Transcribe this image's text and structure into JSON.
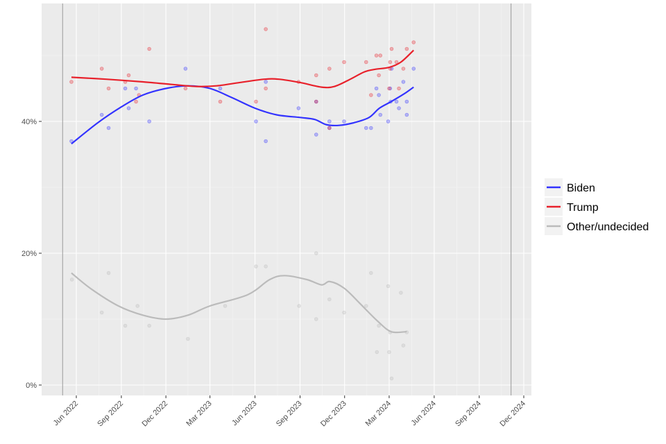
{
  "chart_data": {
    "type": "scatter",
    "title": "",
    "xlabel": "",
    "ylabel": "",
    "xlim": [
      "2022-03-22",
      "2024-12-17"
    ],
    "ylim": [
      -1.6,
      58
    ],
    "grid": true,
    "legend_position": "right",
    "x_ticks": [
      {
        "date": "2022-06-01",
        "label": "Jun 2022"
      },
      {
        "date": "2022-09-01",
        "label": "Sep 2022"
      },
      {
        "date": "2022-12-01",
        "label": "Dec 2022"
      },
      {
        "date": "2023-03-01",
        "label": "Mar 2023"
      },
      {
        "date": "2023-06-01",
        "label": "Jun 2023"
      },
      {
        "date": "2023-09-01",
        "label": "Sep 2023"
      },
      {
        "date": "2023-12-01",
        "label": "Dec 2023"
      },
      {
        "date": "2024-03-01",
        "label": "Mar 2024"
      },
      {
        "date": "2024-06-01",
        "label": "Jun 2024"
      },
      {
        "date": "2024-09-01",
        "label": "Sep 2024"
      },
      {
        "date": "2024-12-01",
        "label": "Dec 2024"
      }
    ],
    "y_ticks": [
      {
        "value": 0,
        "label": "0%"
      },
      {
        "value": 20,
        "label": "20%"
      },
      {
        "value": 40,
        "label": "40%"
      }
    ],
    "reference_lines": [
      "2022-05-04",
      "2024-11-05"
    ],
    "series": [
      {
        "name": "Biden",
        "color": "#3333ff",
        "points": [
          [
            "2022-05-22",
            37
          ],
          [
            "2022-07-23",
            41
          ],
          [
            "2022-08-06",
            39
          ],
          [
            "2022-09-09",
            45
          ],
          [
            "2022-09-16",
            42
          ],
          [
            "2022-10-01",
            45
          ],
          [
            "2022-10-28",
            40
          ],
          [
            "2023-01-10",
            48
          ],
          [
            "2023-03-22",
            45
          ],
          [
            "2023-06-03",
            40
          ],
          [
            "2023-06-23",
            46
          ],
          [
            "2023-06-23",
            37
          ],
          [
            "2023-08-29",
            42
          ],
          [
            "2023-10-04",
            38
          ],
          [
            "2023-10-04",
            43
          ],
          [
            "2023-10-31",
            40
          ],
          [
            "2023-10-31",
            39
          ],
          [
            "2023-11-30",
            40
          ],
          [
            "2024-01-14",
            39
          ],
          [
            "2024-01-24",
            39
          ],
          [
            "2024-02-04",
            45
          ],
          [
            "2024-02-09",
            44
          ],
          [
            "2024-02-12",
            41
          ],
          [
            "2024-02-28",
            40
          ],
          [
            "2024-03-03",
            45
          ],
          [
            "2024-03-04",
            43
          ],
          [
            "2024-03-06",
            48
          ],
          [
            "2024-03-16",
            43
          ],
          [
            "2024-03-21",
            42
          ],
          [
            "2024-03-30",
            46
          ],
          [
            "2024-04-06",
            43
          ],
          [
            "2024-04-06",
            41
          ],
          [
            "2024-04-20",
            48
          ]
        ],
        "trend": [
          [
            "2022-05-22",
            36.6
          ],
          [
            "2022-07-15",
            39.8
          ],
          [
            "2022-09-01",
            42.2
          ],
          [
            "2022-10-15",
            44
          ],
          [
            "2022-12-01",
            45
          ],
          [
            "2023-01-15",
            45.4
          ],
          [
            "2023-03-01",
            45
          ],
          [
            "2023-04-15",
            43.6
          ],
          [
            "2023-06-01",
            42
          ],
          [
            "2023-07-15",
            41
          ],
          [
            "2023-09-01",
            40.6
          ],
          [
            "2023-10-01",
            40.3
          ],
          [
            "2023-10-25",
            39.5
          ],
          [
            "2023-11-20",
            39.4
          ],
          [
            "2023-12-20",
            39.8
          ],
          [
            "2024-01-20",
            40.6
          ],
          [
            "2024-02-10",
            42
          ],
          [
            "2024-03-05",
            43
          ],
          [
            "2024-04-01",
            44.2
          ],
          [
            "2024-04-20",
            45.2
          ]
        ]
      },
      {
        "name": "Trump",
        "color": "#e8212b",
        "points": [
          [
            "2022-05-22",
            46
          ],
          [
            "2022-07-23",
            48
          ],
          [
            "2022-08-06",
            45
          ],
          [
            "2022-09-09",
            46
          ],
          [
            "2022-09-16",
            47
          ],
          [
            "2022-10-01",
            43
          ],
          [
            "2022-10-07",
            44
          ],
          [
            "2022-10-28",
            51
          ],
          [
            "2023-01-10",
            45
          ],
          [
            "2023-03-22",
            43
          ],
          [
            "2023-06-03",
            43
          ],
          [
            "2023-06-23",
            54
          ],
          [
            "2023-06-23",
            45
          ],
          [
            "2023-08-29",
            46
          ],
          [
            "2023-10-04",
            47
          ],
          [
            "2023-10-04",
            43
          ],
          [
            "2023-10-31",
            48
          ],
          [
            "2023-10-31",
            39
          ],
          [
            "2023-11-30",
            49
          ],
          [
            "2024-01-14",
            49
          ],
          [
            "2024-01-24",
            44
          ],
          [
            "2024-02-04",
            50
          ],
          [
            "2024-02-12",
            50
          ],
          [
            "2024-02-09",
            47
          ],
          [
            "2024-03-01",
            45
          ],
          [
            "2024-03-03",
            48
          ],
          [
            "2024-03-06",
            51
          ],
          [
            "2024-03-03",
            49
          ],
          [
            "2024-03-16",
            49
          ],
          [
            "2024-03-21",
            45
          ],
          [
            "2024-03-30",
            48
          ],
          [
            "2024-04-06",
            51
          ],
          [
            "2024-04-20",
            52
          ]
        ],
        "trend": [
          [
            "2022-05-22",
            46.7
          ],
          [
            "2022-08-01",
            46.4
          ],
          [
            "2022-10-15",
            46
          ],
          [
            "2022-12-15",
            45.6
          ],
          [
            "2023-02-01",
            45.3
          ],
          [
            "2023-03-15",
            45.4
          ],
          [
            "2023-05-01",
            45.9
          ],
          [
            "2023-06-20",
            46.4
          ],
          [
            "2023-07-20",
            46.4
          ],
          [
            "2023-09-01",
            45.9
          ],
          [
            "2023-10-15",
            45.2
          ],
          [
            "2023-11-10",
            45.3
          ],
          [
            "2023-12-10",
            46.3
          ],
          [
            "2024-01-10",
            47.5
          ],
          [
            "2024-02-01",
            47.9
          ],
          [
            "2024-03-01",
            48.2
          ],
          [
            "2024-03-25",
            49
          ],
          [
            "2024-04-20",
            50.8
          ]
        ]
      },
      {
        "name": "Other/undecided",
        "color": "#bbbbbb",
        "points": [
          [
            "2022-05-23",
            16
          ],
          [
            "2022-08-06",
            17
          ],
          [
            "2022-07-23",
            11
          ],
          [
            "2022-09-09",
            9
          ],
          [
            "2022-10-04",
            12
          ],
          [
            "2022-10-28",
            9
          ],
          [
            "2023-01-15",
            7
          ],
          [
            "2023-04-01",
            12
          ],
          [
            "2023-06-03",
            18
          ],
          [
            "2023-06-23",
            18
          ],
          [
            "2023-08-30",
            12
          ],
          [
            "2023-10-04",
            20
          ],
          [
            "2023-10-04",
            10
          ],
          [
            "2023-10-31",
            13
          ],
          [
            "2023-11-30",
            11
          ],
          [
            "2024-01-14",
            12
          ],
          [
            "2024-01-24",
            17
          ],
          [
            "2024-02-05",
            5
          ],
          [
            "2024-02-09",
            9
          ],
          [
            "2024-02-28",
            15
          ],
          [
            "2024-03-01",
            5
          ],
          [
            "2024-03-06",
            1
          ],
          [
            "2024-03-03",
            8
          ],
          [
            "2024-03-25",
            14
          ],
          [
            "2024-03-30",
            6
          ],
          [
            "2024-04-06",
            8
          ]
        ],
        "trend": [
          [
            "2022-05-22",
            17
          ],
          [
            "2022-07-01",
            14.6
          ],
          [
            "2022-08-26",
            12
          ],
          [
            "2022-10-15",
            10.6
          ],
          [
            "2022-12-01",
            10
          ],
          [
            "2023-01-15",
            10.6
          ],
          [
            "2023-03-01",
            12
          ],
          [
            "2023-05-17",
            13.7
          ],
          [
            "2023-07-01",
            16
          ],
          [
            "2023-08-01",
            16.6
          ],
          [
            "2023-09-15",
            16
          ],
          [
            "2023-10-15",
            15.2
          ],
          [
            "2023-11-01",
            15.7
          ],
          [
            "2023-11-30",
            14.7
          ],
          [
            "2024-01-01",
            12.4
          ],
          [
            "2024-02-05",
            9.8
          ],
          [
            "2024-03-05",
            8.1
          ],
          [
            "2024-04-06",
            8.1
          ]
        ]
      }
    ]
  }
}
